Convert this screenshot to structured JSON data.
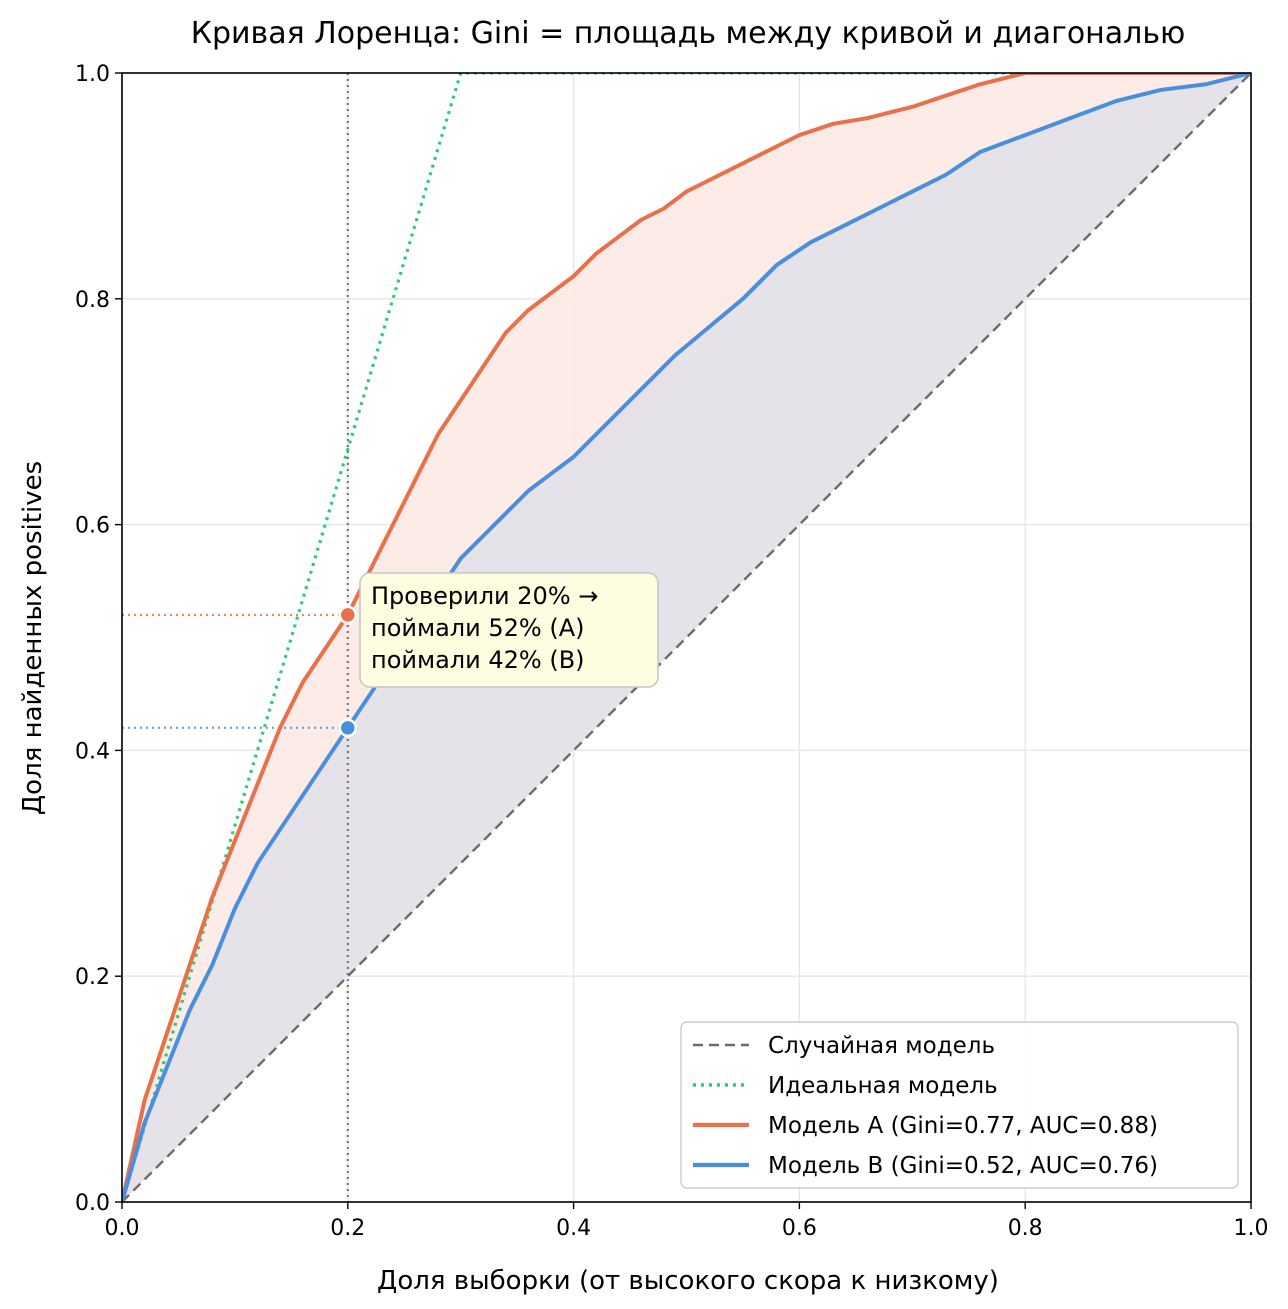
{
  "chart_data": {
    "type": "line",
    "title": "Кривая Лоренца: Gini = площадь между кривой и диагональю",
    "xlabel": "Доля выборки (от высокого скора к низкому)",
    "ylabel": "Доля найденных positives",
    "xlim": [
      0,
      1
    ],
    "ylim": [
      0,
      1
    ],
    "x_ticks": [
      "0.0",
      "0.2",
      "0.4",
      "0.6",
      "0.8",
      "1.0"
    ],
    "y_ticks": [
      "0.0",
      "0.2",
      "0.4",
      "0.6",
      "0.8",
      "1.0"
    ],
    "grid": true,
    "legend_position": "bottom-right",
    "series": [
      {
        "name": "Случайная модель",
        "color": "#6b6b6b",
        "style": "dashed",
        "x": [
          0,
          1
        ],
        "y": [
          0,
          1
        ]
      },
      {
        "name": "Идеальная модель",
        "color": "#2ecc71",
        "style": "dotted",
        "x": [
          0,
          0.3,
          1.0
        ],
        "y": [
          0,
          1.0,
          1.0
        ]
      },
      {
        "name": "Модель A (Gini=0.77, AUC=0.88)",
        "color": "#e8704a",
        "style": "solid",
        "fill": "#fbe8e2",
        "x": [
          0,
          0.02,
          0.04,
          0.06,
          0.08,
          0.1,
          0.12,
          0.14,
          0.16,
          0.18,
          0.2,
          0.22,
          0.24,
          0.26,
          0.28,
          0.3,
          0.32,
          0.34,
          0.36,
          0.38,
          0.4,
          0.42,
          0.44,
          0.46,
          0.48,
          0.5,
          0.52,
          0.55,
          0.58,
          0.6,
          0.63,
          0.66,
          0.7,
          0.73,
          0.76,
          0.8,
          0.85,
          0.9,
          1.0
        ],
        "y": [
          0,
          0.09,
          0.15,
          0.21,
          0.27,
          0.32,
          0.37,
          0.42,
          0.46,
          0.49,
          0.52,
          0.56,
          0.6,
          0.64,
          0.68,
          0.71,
          0.74,
          0.77,
          0.79,
          0.805,
          0.82,
          0.84,
          0.855,
          0.87,
          0.88,
          0.895,
          0.905,
          0.92,
          0.935,
          0.945,
          0.955,
          0.96,
          0.97,
          0.98,
          0.99,
          1.0,
          1.0,
          1.0,
          1.0
        ]
      },
      {
        "name": "Модель B (Gini=0.52, AUC=0.76)",
        "color": "#4a8fdb",
        "style": "solid",
        "fill": "#e6e2ea",
        "x": [
          0,
          0.02,
          0.04,
          0.06,
          0.08,
          0.1,
          0.12,
          0.14,
          0.16,
          0.18,
          0.2,
          0.22,
          0.24,
          0.26,
          0.28,
          0.3,
          0.32,
          0.34,
          0.36,
          0.38,
          0.4,
          0.43,
          0.46,
          0.49,
          0.52,
          0.55,
          0.58,
          0.61,
          0.64,
          0.67,
          0.7,
          0.73,
          0.76,
          0.8,
          0.84,
          0.88,
          0.92,
          0.96,
          1.0
        ],
        "y": [
          0,
          0.07,
          0.12,
          0.17,
          0.21,
          0.26,
          0.3,
          0.33,
          0.36,
          0.39,
          0.42,
          0.45,
          0.48,
          0.51,
          0.54,
          0.57,
          0.59,
          0.61,
          0.63,
          0.645,
          0.66,
          0.69,
          0.72,
          0.75,
          0.775,
          0.8,
          0.83,
          0.85,
          0.865,
          0.88,
          0.895,
          0.91,
          0.93,
          0.945,
          0.96,
          0.975,
          0.985,
          0.99,
          1.0
        ]
      }
    ],
    "reference_line_x": 0.2,
    "markers": [
      {
        "series": "A",
        "x": 0.2,
        "y": 0.52,
        "color": "#e8704a"
      },
      {
        "series": "B",
        "x": 0.2,
        "y": 0.42,
        "color": "#4a8fdb"
      }
    ],
    "annotation": {
      "lines": [
        "Проверили 20% →",
        "поймали 52% (A)",
        "поймали 42% (B)"
      ],
      "box_color": "#fdfde0",
      "border_color": "#c8c8c8"
    }
  }
}
